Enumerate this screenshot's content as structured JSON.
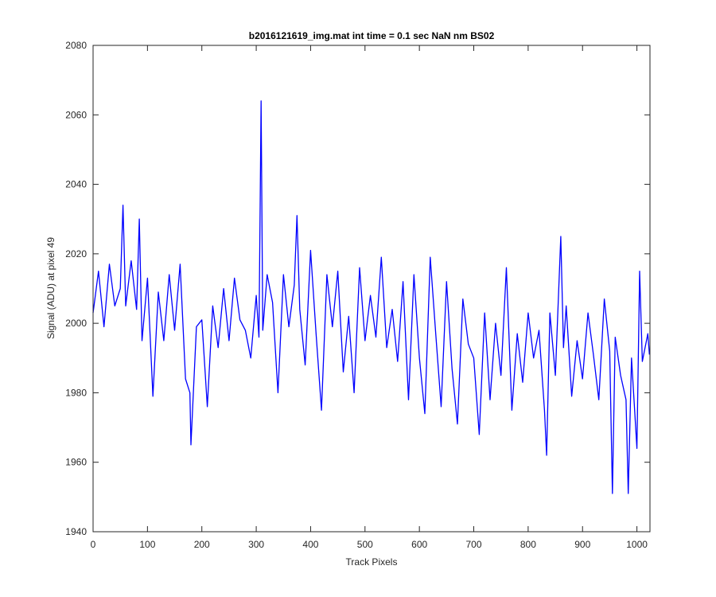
{
  "chart_data": {
    "type": "line",
    "title": "b2016121619_img.mat int time = 0.1 sec  NaN nm BS02",
    "xlabel": "Track Pixels",
    "ylabel": "Signal (ADU) at pixel 49",
    "xlim": [
      0,
      1024
    ],
    "ylim": [
      1940,
      2080
    ],
    "xticks": [
      0,
      100,
      200,
      300,
      400,
      500,
      600,
      700,
      800,
      900,
      1000
    ],
    "yticks": [
      1940,
      1960,
      1980,
      2000,
      2020,
      2040,
      2060,
      2080
    ],
    "xtick_labels": [
      "0",
      "100",
      "200",
      "300",
      "400",
      "500",
      "600",
      "700",
      "800",
      "900",
      "1000"
    ],
    "ytick_labels": [
      "1940",
      "1960",
      "1980",
      "2000",
      "2020",
      "2040",
      "2060",
      "2080"
    ],
    "grid": false,
    "line_color": "#0000ff",
    "series": [
      {
        "name": "",
        "x": [
          0,
          10,
          20,
          30,
          40,
          50,
          55,
          60,
          70,
          80,
          85,
          90,
          100,
          110,
          120,
          130,
          140,
          150,
          160,
          170,
          178,
          180,
          190,
          200,
          210,
          220,
          230,
          240,
          250,
          260,
          270,
          280,
          290,
          300,
          305,
          309,
          312,
          320,
          330,
          340,
          350,
          360,
          370,
          375,
          380,
          390,
          400,
          410,
          420,
          430,
          440,
          450,
          460,
          470,
          480,
          490,
          500,
          510,
          520,
          530,
          540,
          550,
          560,
          570,
          580,
          590,
          600,
          610,
          620,
          630,
          640,
          650,
          660,
          670,
          680,
          690,
          700,
          710,
          720,
          730,
          740,
          750,
          760,
          770,
          780,
          790,
          800,
          810,
          820,
          830,
          834,
          840,
          850,
          860,
          865,
          870,
          880,
          890,
          900,
          910,
          920,
          930,
          940,
          950,
          955,
          960,
          970,
          980,
          984,
          990,
          1000,
          1005,
          1010,
          1020,
          1023
        ],
        "values": [
          2003,
          2015,
          1999,
          2017,
          2005,
          2010,
          2034,
          2005,
          2018,
          2004,
          2030,
          1995,
          2013,
          1979,
          2009,
          1995,
          2014,
          1998,
          2017,
          1984,
          1980,
          1965,
          1999,
          2001,
          1976,
          2005,
          1993,
          2010,
          1995,
          2013,
          2001,
          1998,
          1990,
          2008,
          1996,
          2064,
          1998,
          2014,
          2006,
          1980,
          2014,
          1999,
          2011,
          2031,
          2004,
          1988,
          2021,
          1997,
          1975,
          2014,
          1999,
          2015,
          1986,
          2002,
          1980,
          2016,
          1995,
          2008,
          1996,
          2019,
          1993,
          2004,
          1989,
          2012,
          1978,
          2014,
          1990,
          1974,
          2019,
          1997,
          1976,
          2012,
          1987,
          1971,
          2007,
          1994,
          1990,
          1968,
          2003,
          1978,
          2000,
          1985,
          2016,
          1975,
          1997,
          1983,
          2003,
          1990,
          1998,
          1975,
          1962,
          2003,
          1985,
          2025,
          1993,
          2005,
          1979,
          1995,
          1984,
          2003,
          1991,
          1978,
          2007,
          1992,
          1951,
          1996,
          1985,
          1978,
          1951,
          1990,
          1964,
          2015,
          1989,
          1997,
          1991
        ]
      }
    ]
  }
}
